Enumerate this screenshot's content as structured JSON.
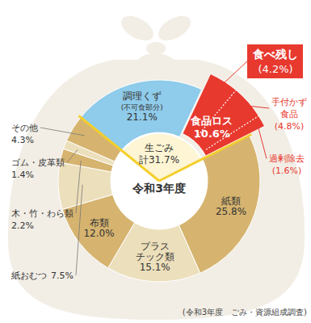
{
  "chart_data": {
    "type": "donut",
    "center_label": "令和3年度",
    "categories": [
      "食品ロス",
      "紙類",
      "プラス\nチック類",
      "布類",
      "紙おむつ",
      "木・竹・わら類",
      "ゴム・皮革類",
      "その他",
      "調理くず"
    ],
    "values": [
      10.6,
      25.8,
      15.1,
      12.0,
      7.5,
      2.2,
      1.4,
      4.3,
      21.1
    ],
    "value_labels": [
      "10.6%",
      "25.8%",
      "15.1%",
      "12.0%",
      "7.5%",
      "2.2%",
      "1.4%",
      "4.3%",
      "21.1%"
    ],
    "colors": [
      "#e8392f",
      "#d6b46f",
      "#ecdfbb",
      "#d6b46f",
      "#ecdfbb",
      "#d6b46f",
      "#ecdfbb",
      "#d6b46f",
      "#8fcbea"
    ],
    "data_labels": true,
    "annotations": [
      {
        "text": "(不可食部分)",
        "target": "調理くず"
      }
    ],
    "group": {
      "name": "生ごみ",
      "value": 31.7,
      "value_label": "計31.7%",
      "members": [
        "調理くず",
        "食品ロス"
      ]
    },
    "breakdown": {
      "of": "食品ロス",
      "categories": [
        "食べ残し",
        "手付かず\n食品",
        "過剰除去"
      ],
      "values": [
        4.2,
        4.8,
        1.6
      ],
      "value_labels": [
        "(4.2%)",
        "(4.8%)",
        "(1.6%)"
      ]
    },
    "source": "(令和3年度　ごみ・資源組成調査)"
  }
}
